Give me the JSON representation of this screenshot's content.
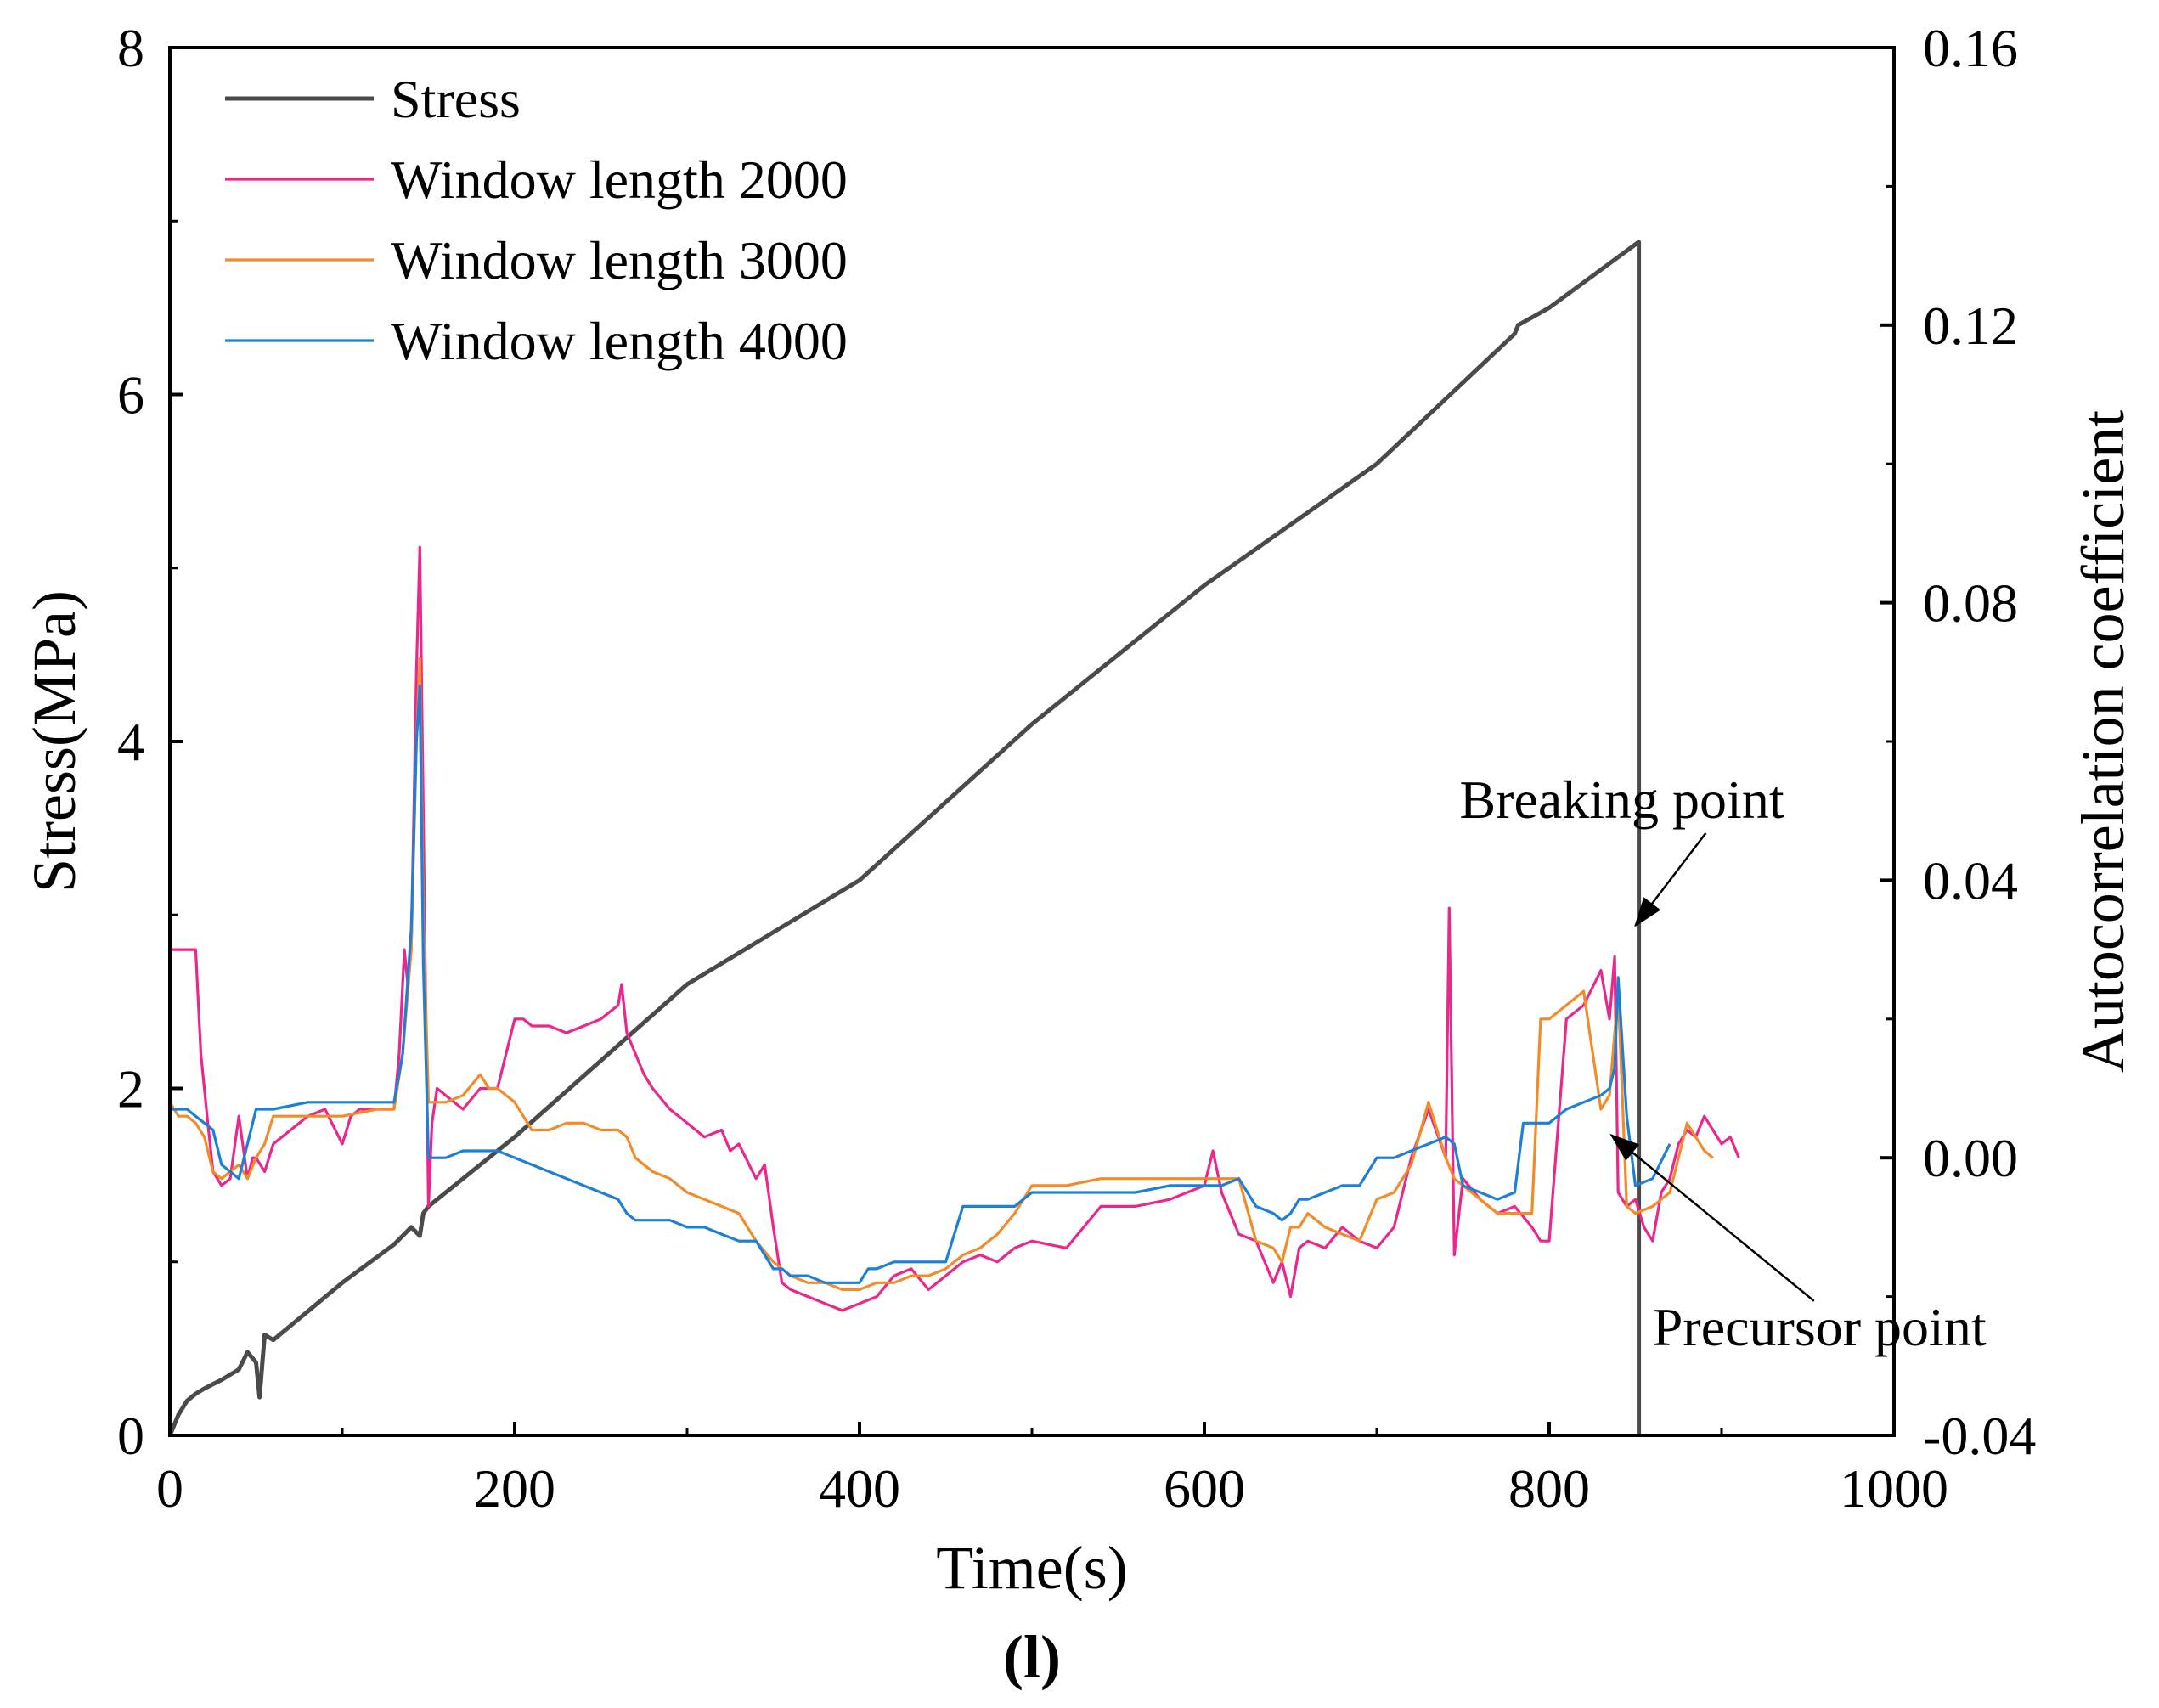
{
  "chart_data": {
    "type": "line",
    "xlabel": "Time(s)",
    "ylabel": "Stress(MPa)",
    "y2label": "Autocorrelation coefficient",
    "caption": "(l)",
    "xlim": [
      0,
      1000
    ],
    "ylim": [
      0,
      8
    ],
    "y2lim": [
      -0.04,
      0.16
    ],
    "xticks": [
      0,
      200,
      400,
      600,
      800,
      1000
    ],
    "yticks": [
      0,
      2,
      4,
      6,
      8
    ],
    "y2ticks": [
      -0.04,
      0.0,
      0.04,
      0.08,
      0.12,
      0.16
    ],
    "xtick_labels": [
      "0",
      "200",
      "400",
      "600",
      "800",
      "1000"
    ],
    "ytick_labels": [
      "0",
      "2",
      "4",
      "6",
      "8"
    ],
    "y2tick_labels": [
      "-0.04",
      "0.00",
      "0.04",
      "0.08",
      "0.12",
      "0.16"
    ],
    "legend_position": "top-left",
    "series": [
      {
        "name": "Stress",
        "axis": "left",
        "color": "#4a4a4a",
        "x": [
          0,
          5,
          10,
          15,
          20,
          30,
          40,
          45,
          50,
          52,
          55,
          60,
          100,
          130,
          140,
          145,
          147,
          150,
          200,
          300,
          400,
          500,
          600,
          700,
          780,
          782,
          800,
          852,
          852
        ],
        "y": [
          0.0,
          0.12,
          0.2,
          0.24,
          0.27,
          0.32,
          0.38,
          0.48,
          0.42,
          0.22,
          0.58,
          0.55,
          0.88,
          1.1,
          1.2,
          1.15,
          1.28,
          1.32,
          1.72,
          2.6,
          3.2,
          4.1,
          4.9,
          5.6,
          6.35,
          6.4,
          6.5,
          6.88,
          0.0
        ]
      },
      {
        "name": "Window length 2000",
        "axis": "right",
        "color": "#e8288c",
        "x": [
          0,
          2,
          8,
          15,
          18,
          22,
          25,
          30,
          35,
          40,
          45,
          48,
          50,
          55,
          60,
          70,
          80,
          90,
          100,
          105,
          110,
          120,
          130,
          133,
          136,
          138,
          140,
          143,
          145,
          147,
          148,
          150,
          152,
          155,
          160,
          170,
          180,
          190,
          200,
          205,
          210,
          220,
          230,
          240,
          250,
          260,
          262,
          265,
          270,
          275,
          280,
          290,
          300,
          310,
          320,
          325,
          330,
          340,
          345,
          350,
          355,
          360,
          370,
          380,
          390,
          400,
          410,
          420,
          430,
          440,
          450,
          460,
          470,
          480,
          490,
          500,
          520,
          540,
          560,
          580,
          600,
          605,
          610,
          620,
          630,
          640,
          645,
          650,
          655,
          660,
          670,
          680,
          690,
          700,
          710,
          720,
          730,
          740,
          742,
          745,
          750,
          760,
          770,
          780,
          790,
          795,
          800,
          810,
          820,
          830,
          835,
          838,
          840,
          845,
          850,
          855,
          860,
          865,
          870,
          875,
          880,
          885,
          890,
          900,
          905,
          910
        ],
        "y": [
          0.03,
          0.03,
          0.03,
          0.03,
          0.015,
          0.005,
          -0.002,
          -0.004,
          -0.003,
          0.006,
          -0.003,
          0.0,
          0.0,
          -0.002,
          0.002,
          0.004,
          0.006,
          0.007,
          0.002,
          0.006,
          0.007,
          0.007,
          0.007,
          0.015,
          0.03,
          0.025,
          0.03,
          0.07,
          0.088,
          0.05,
          0.03,
          -0.007,
          0.005,
          0.01,
          0.009,
          0.007,
          0.01,
          0.01,
          0.02,
          0.02,
          0.019,
          0.019,
          0.018,
          0.019,
          0.02,
          0.022,
          0.025,
          0.018,
          0.015,
          0.012,
          0.01,
          0.007,
          0.005,
          0.003,
          0.004,
          0.001,
          0.002,
          -0.003,
          -0.001,
          -0.01,
          -0.018,
          -0.019,
          -0.02,
          -0.021,
          -0.022,
          -0.021,
          -0.02,
          -0.017,
          -0.016,
          -0.019,
          -0.017,
          -0.015,
          -0.014,
          -0.015,
          -0.013,
          -0.012,
          -0.013,
          -0.007,
          -0.007,
          -0.006,
          -0.004,
          0.001,
          -0.005,
          -0.011,
          -0.012,
          -0.018,
          -0.015,
          -0.02,
          -0.013,
          -0.012,
          -0.013,
          -0.01,
          -0.012,
          -0.013,
          -0.01,
          0.0,
          0.007,
          0.0,
          0.036,
          -0.014,
          -0.003,
          -0.006,
          -0.008,
          -0.007,
          -0.01,
          -0.012,
          -0.012,
          0.02,
          0.022,
          0.027,
          0.02,
          0.029,
          -0.005,
          -0.007,
          -0.006,
          -0.01,
          -0.012,
          -0.005,
          -0.003,
          0.002,
          0.004,
          0.003,
          0.006,
          0.002,
          0.003,
          0.0
        ]
      },
      {
        "name": "Window length 3000",
        "axis": "right",
        "color": "#f28c2a",
        "x": [
          0,
          5,
          10,
          15,
          20,
          25,
          30,
          35,
          40,
          45,
          50,
          55,
          60,
          80,
          100,
          120,
          130,
          135,
          140,
          143,
          145,
          147,
          150,
          160,
          170,
          180,
          185,
          190,
          200,
          210,
          220,
          230,
          240,
          250,
          260,
          265,
          270,
          280,
          290,
          300,
          310,
          320,
          330,
          340,
          350,
          355,
          360,
          370,
          380,
          390,
          400,
          410,
          420,
          430,
          440,
          450,
          460,
          470,
          480,
          490,
          500,
          520,
          540,
          560,
          580,
          600,
          610,
          620,
          630,
          640,
          645,
          650,
          655,
          660,
          670,
          680,
          690,
          700,
          710,
          720,
          730,
          740,
          745,
          750,
          760,
          770,
          780,
          790,
          795,
          800,
          810,
          820,
          830,
          835,
          840,
          845,
          850,
          860,
          870,
          880,
          890,
          895
        ],
        "y": [
          0.008,
          0.006,
          0.006,
          0.005,
          0.003,
          -0.002,
          -0.003,
          -0.002,
          -0.001,
          -0.003,
          0.0,
          0.002,
          0.006,
          0.006,
          0.006,
          0.007,
          0.007,
          0.015,
          0.03,
          0.06,
          0.072,
          0.035,
          0.008,
          0.008,
          0.009,
          0.012,
          0.01,
          0.01,
          0.008,
          0.004,
          0.004,
          0.005,
          0.005,
          0.004,
          0.004,
          0.003,
          0.0,
          -0.002,
          -0.003,
          -0.005,
          -0.006,
          -0.007,
          -0.008,
          -0.012,
          -0.015,
          -0.016,
          -0.017,
          -0.018,
          -0.018,
          -0.019,
          -0.019,
          -0.018,
          -0.018,
          -0.017,
          -0.017,
          -0.016,
          -0.014,
          -0.013,
          -0.011,
          -0.008,
          -0.004,
          -0.004,
          -0.003,
          -0.003,
          -0.003,
          -0.003,
          -0.003,
          -0.003,
          -0.012,
          -0.013,
          -0.015,
          -0.01,
          -0.01,
          -0.008,
          -0.01,
          -0.011,
          -0.012,
          -0.006,
          -0.005,
          -0.001,
          0.008,
          0.0,
          -0.003,
          -0.004,
          -0.006,
          -0.008,
          -0.008,
          -0.008,
          0.02,
          0.02,
          0.022,
          0.024,
          0.007,
          0.009,
          0.024,
          -0.007,
          -0.008,
          -0.007,
          -0.005,
          0.005,
          0.001,
          0.0
        ]
      },
      {
        "name": "Window length 4000",
        "axis": "right",
        "color": "#1f7fd4",
        "x": [
          0,
          5,
          10,
          15,
          20,
          25,
          30,
          35,
          40,
          45,
          50,
          55,
          60,
          80,
          100,
          120,
          130,
          135,
          140,
          143,
          145,
          147,
          150,
          160,
          170,
          180,
          190,
          200,
          210,
          220,
          230,
          240,
          250,
          260,
          265,
          270,
          280,
          290,
          300,
          310,
          320,
          330,
          340,
          350,
          355,
          360,
          370,
          380,
          390,
          400,
          405,
          410,
          420,
          430,
          440,
          450,
          460,
          470,
          480,
          490,
          500,
          520,
          540,
          560,
          580,
          600,
          610,
          620,
          630,
          640,
          645,
          650,
          655,
          660,
          670,
          680,
          690,
          700,
          710,
          720,
          730,
          740,
          745,
          750,
          760,
          770,
          780,
          785,
          790,
          800,
          810,
          820,
          830,
          835,
          838,
          840,
          845,
          850,
          860,
          870
        ],
        "y": [
          0.007,
          0.007,
          0.007,
          0.006,
          0.005,
          0.004,
          -0.001,
          -0.002,
          -0.003,
          0.002,
          0.007,
          0.007,
          0.007,
          0.008,
          0.008,
          0.008,
          0.008,
          0.015,
          0.033,
          0.06,
          0.068,
          0.028,
          0.0,
          0.0,
          0.001,
          0.001,
          0.001,
          0.0,
          -0.001,
          -0.002,
          -0.003,
          -0.004,
          -0.005,
          -0.006,
          -0.008,
          -0.009,
          -0.009,
          -0.009,
          -0.01,
          -0.01,
          -0.011,
          -0.012,
          -0.012,
          -0.016,
          -0.016,
          -0.017,
          -0.017,
          -0.018,
          -0.018,
          -0.018,
          -0.016,
          -0.016,
          -0.015,
          -0.015,
          -0.015,
          -0.015,
          -0.007,
          -0.007,
          -0.007,
          -0.007,
          -0.005,
          -0.005,
          -0.005,
          -0.005,
          -0.004,
          -0.004,
          -0.004,
          -0.003,
          -0.007,
          -0.008,
          -0.009,
          -0.008,
          -0.006,
          -0.006,
          -0.005,
          -0.004,
          -0.004,
          0.0,
          0.0,
          0.001,
          0.002,
          0.003,
          0.002,
          -0.004,
          -0.005,
          -0.006,
          -0.005,
          0.005,
          0.005,
          0.005,
          0.007,
          0.008,
          0.009,
          0.01,
          0.013,
          0.026,
          0.006,
          -0.004,
          -0.003,
          0.002
        ]
      }
    ],
    "annotations": [
      {
        "text": "Breaking point",
        "text_x": 748,
        "text_y": 0.049,
        "point_x": 852,
        "point_y": 0.033,
        "axis": "right"
      },
      {
        "text": "Precursor point",
        "text_x": 860,
        "text_y": -0.027,
        "point_x": 838,
        "point_y": 0.004,
        "axis": "right"
      }
    ]
  }
}
